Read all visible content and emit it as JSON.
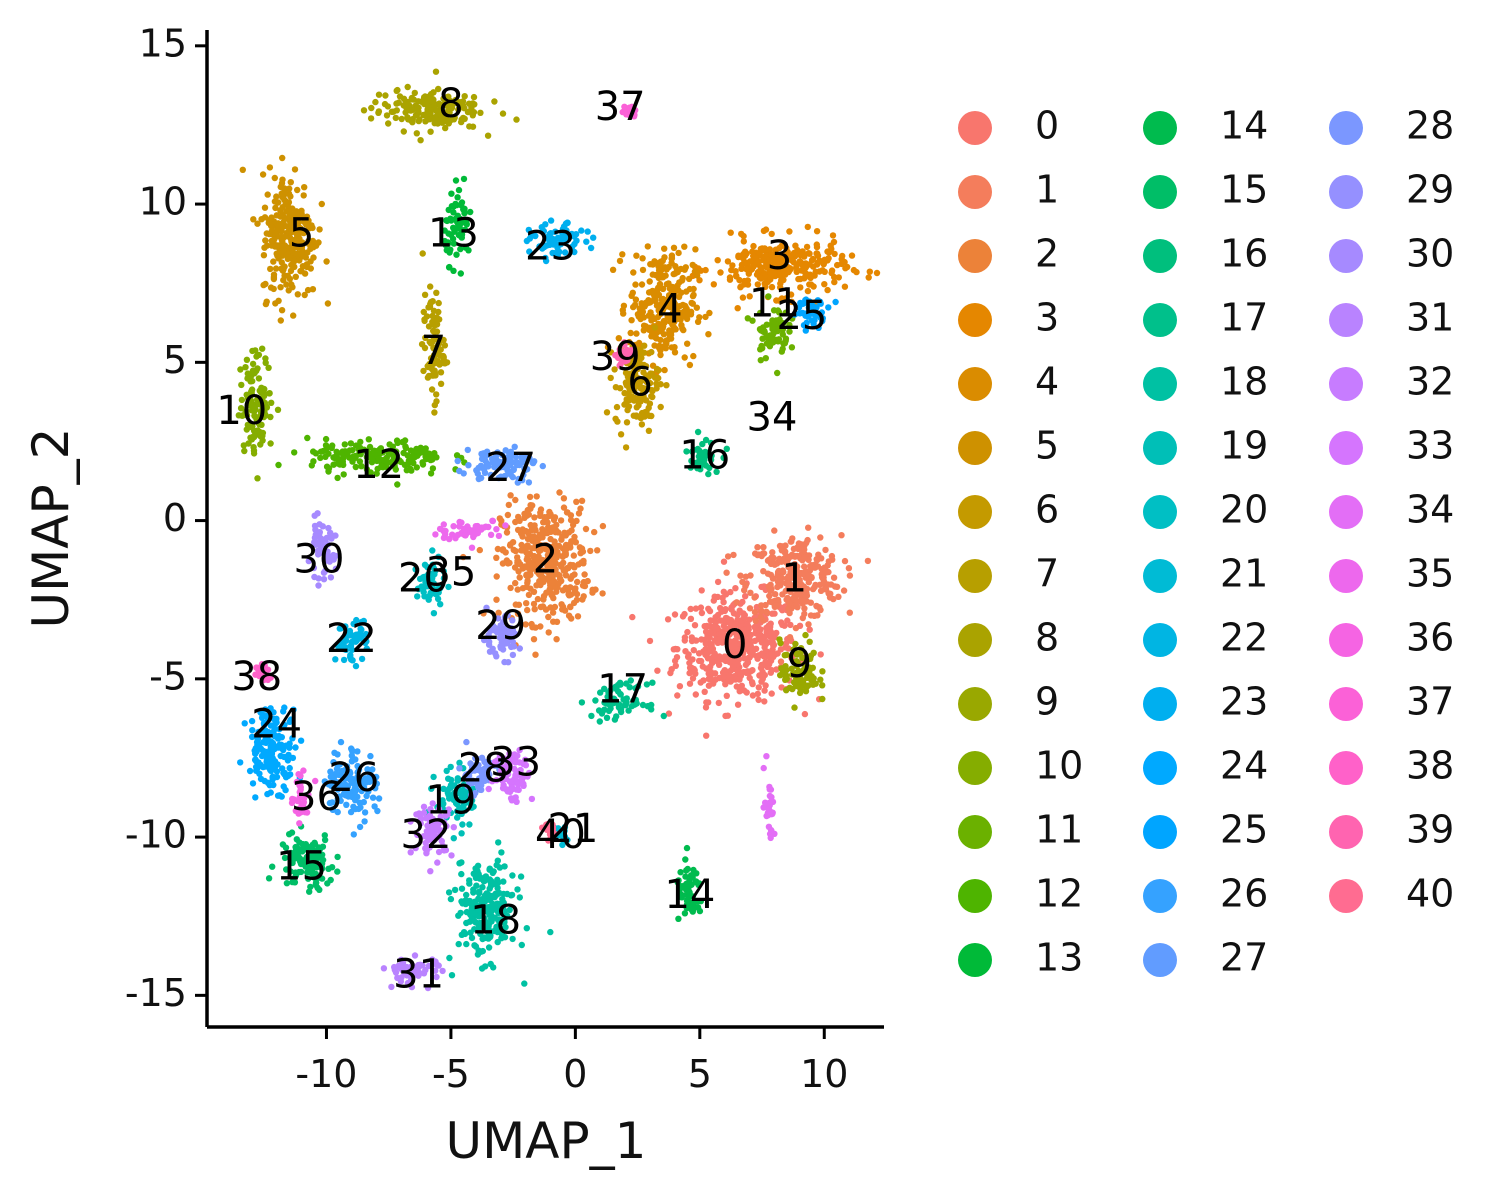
{
  "chart_data": {
    "type": "scatter",
    "title": "",
    "xlabel": "UMAP_1",
    "ylabel": "UMAP_2",
    "xlim": [
      -14.8,
      12.4
    ],
    "ylim": [
      -16.0,
      15.5
    ],
    "xticks": [
      -10,
      -5,
      0,
      5,
      10
    ],
    "yticks": [
      -15,
      -10,
      -5,
      0,
      5,
      10,
      15
    ],
    "xtick_labels": [
      "-10",
      "-5",
      "0",
      "5",
      "10"
    ],
    "ytick_labels": [
      "-15",
      "-10",
      "-5",
      "0",
      "5",
      "10",
      "15"
    ],
    "grid": false,
    "legend_position": "right",
    "legend_columns": 3,
    "clusters": [
      {
        "name": "0",
        "color": "#F8766D",
        "center": [
          6.5,
          -4.0
        ],
        "spread": [
          2.2,
          1.5
        ]
      },
      {
        "name": "1",
        "color": "#F47D5C",
        "center": [
          8.8,
          -1.8
        ],
        "spread": [
          1.7,
          1.2
        ]
      },
      {
        "name": "2",
        "color": "#EC8239",
        "center": [
          -1.2,
          -1.3
        ],
        "spread": [
          1.6,
          1.7
        ]
      },
      {
        "name": "3",
        "color": "#E58700",
        "center": [
          8.2,
          8.0
        ],
        "spread": [
          2.4,
          0.8
        ]
      },
      {
        "name": "4",
        "color": "#DA8C00",
        "center": [
          3.5,
          6.8
        ],
        "spread": [
          1.2,
          1.6
        ]
      },
      {
        "name": "5",
        "color": "#CE9100",
        "center": [
          -11.5,
          9.0
        ],
        "spread": [
          1.0,
          1.8
        ]
      },
      {
        "name": "6",
        "color": "#C49A00",
        "center": [
          2.5,
          4.3
        ],
        "spread": [
          0.8,
          1.2
        ]
      },
      {
        "name": "7",
        "color": "#B79F00",
        "center": [
          -5.7,
          5.5
        ],
        "spread": [
          0.4,
          1.5
        ]
      },
      {
        "name": "8",
        "color": "#AAA300",
        "center": [
          -6.0,
          13.0
        ],
        "spread": [
          2.0,
          0.6
        ]
      },
      {
        "name": "9",
        "color": "#99A800",
        "center": [
          9.0,
          -4.8
        ],
        "spread": [
          0.7,
          0.9
        ]
      },
      {
        "name": "10",
        "color": "#85AD00",
        "center": [
          -12.8,
          3.7
        ],
        "spread": [
          0.6,
          1.4
        ]
      },
      {
        "name": "11",
        "color": "#6BB100",
        "center": [
          7.9,
          6.0
        ],
        "spread": [
          0.6,
          0.8
        ]
      },
      {
        "name": "12",
        "color": "#4EB400",
        "center": [
          -8.0,
          2.0
        ],
        "spread": [
          2.5,
          0.5
        ]
      },
      {
        "name": "13",
        "color": "#00BA38",
        "center": [
          -4.7,
          9.3
        ],
        "spread": [
          0.5,
          1.0
        ]
      },
      {
        "name": "14",
        "color": "#00BB4E",
        "center": [
          4.6,
          -11.8
        ],
        "spread": [
          0.5,
          0.8
        ]
      },
      {
        "name": "15",
        "color": "#00BE67",
        "center": [
          -10.8,
          -10.8
        ],
        "spread": [
          1.0,
          0.8
        ]
      },
      {
        "name": "16",
        "color": "#00BF7D",
        "center": [
          5.1,
          2.1
        ],
        "spread": [
          0.6,
          0.5
        ]
      },
      {
        "name": "17",
        "color": "#00C08B",
        "center": [
          1.8,
          -5.7
        ],
        "spread": [
          1.0,
          0.5
        ]
      },
      {
        "name": "18",
        "color": "#00C1A3",
        "center": [
          -3.6,
          -12.3
        ],
        "spread": [
          1.1,
          1.4
        ]
      },
      {
        "name": "19",
        "color": "#00BFB7",
        "center": [
          -4.7,
          -8.8
        ],
        "spread": [
          0.8,
          0.8
        ]
      },
      {
        "name": "20",
        "color": "#00BFC4",
        "center": [
          -5.8,
          -2.0
        ],
        "spread": [
          0.5,
          0.7
        ]
      },
      {
        "name": "21",
        "color": "#00BBD5",
        "center": [
          -0.7,
          -9.9
        ],
        "spread": [
          0.3,
          0.3
        ]
      },
      {
        "name": "22",
        "color": "#00B5E3",
        "center": [
          -9.0,
          -3.8
        ],
        "spread": [
          0.6,
          0.6
        ]
      },
      {
        "name": "23",
        "color": "#00AFEF",
        "center": [
          -0.7,
          8.8
        ],
        "spread": [
          1.0,
          0.5
        ]
      },
      {
        "name": "24",
        "color": "#00A9FF",
        "center": [
          -12.2,
          -7.2
        ],
        "spread": [
          0.9,
          1.2
        ]
      },
      {
        "name": "25",
        "color": "#00A5FF",
        "center": [
          9.5,
          6.6
        ],
        "spread": [
          0.7,
          0.4
        ]
      },
      {
        "name": "26",
        "color": "#35A2FF",
        "center": [
          -9.0,
          -8.3
        ],
        "spread": [
          0.9,
          1.0
        ]
      },
      {
        "name": "27",
        "color": "#619CFF",
        "center": [
          -3.0,
          1.8
        ],
        "spread": [
          1.3,
          0.5
        ]
      },
      {
        "name": "28",
        "color": "#7B97FF",
        "center": [
          -3.9,
          -8.0
        ],
        "spread": [
          0.7,
          0.6
        ]
      },
      {
        "name": "29",
        "color": "#9590FF",
        "center": [
          -3.0,
          -3.7
        ],
        "spread": [
          0.7,
          0.6
        ]
      },
      {
        "name": "30",
        "color": "#A68AFF",
        "center": [
          -10.2,
          -1.0
        ],
        "spread": [
          0.5,
          0.8
        ]
      },
      {
        "name": "31",
        "color": "#B983FF",
        "center": [
          -6.5,
          -14.2
        ],
        "spread": [
          1.0,
          0.4
        ]
      },
      {
        "name": "32",
        "color": "#C77CFF",
        "center": [
          -5.7,
          -9.8
        ],
        "spread": [
          0.7,
          0.7
        ]
      },
      {
        "name": "33",
        "color": "#D575FE",
        "center": [
          -2.5,
          -8.0
        ],
        "spread": [
          0.7,
          0.8
        ]
      },
      {
        "name": "34",
        "color": "#E36EF6",
        "center": [
          7.8,
          -9.0
        ],
        "spread": [
          0.2,
          1.0
        ]
      },
      {
        "name": "35",
        "color": "#ED68ED",
        "center": [
          -4.2,
          -0.3
        ],
        "spread": [
          1.2,
          0.3
        ]
      },
      {
        "name": "36",
        "color": "#F564E3",
        "center": [
          -11.0,
          -8.8
        ],
        "spread": [
          0.4,
          0.6
        ]
      },
      {
        "name": "37",
        "color": "#FB61D7",
        "center": [
          2.2,
          12.9
        ],
        "spread": [
          0.2,
          0.2
        ]
      },
      {
        "name": "38",
        "color": "#FF61C9",
        "center": [
          -12.6,
          -4.8
        ],
        "spread": [
          0.3,
          0.3
        ]
      },
      {
        "name": "39",
        "color": "#FF64B0",
        "center": [
          2.0,
          5.2
        ],
        "spread": [
          0.3,
          0.3
        ]
      },
      {
        "name": "40",
        "color": "#FF6C91",
        "center": [
          -1.0,
          -9.8
        ],
        "spread": [
          0.2,
          0.2
        ]
      }
    ],
    "cluster_labels": [
      {
        "text": "0",
        "x": 6.4,
        "y": -4.0
      },
      {
        "text": "1",
        "x": 8.8,
        "y": -1.9
      },
      {
        "text": "2",
        "x": -1.2,
        "y": -1.3
      },
      {
        "text": "3",
        "x": 8.2,
        "y": 8.3
      },
      {
        "text": "4",
        "x": 3.8,
        "y": 6.6
      },
      {
        "text": "5",
        "x": -11.0,
        "y": 9.0
      },
      {
        "text": "6",
        "x": 2.6,
        "y": 4.3
      },
      {
        "text": "7",
        "x": -5.7,
        "y": 5.3
      },
      {
        "text": "8",
        "x": -5.0,
        "y": 13.1
      },
      {
        "text": "9",
        "x": 9.0,
        "y": -4.6
      },
      {
        "text": "10",
        "x": -13.4,
        "y": 3.4
      },
      {
        "text": "11",
        "x": 8.0,
        "y": 6.8
      },
      {
        "text": "12",
        "x": -7.9,
        "y": 1.7
      },
      {
        "text": "13",
        "x": -4.9,
        "y": 9.0
      },
      {
        "text": "14",
        "x": 4.6,
        "y": -11.9
      },
      {
        "text": "15",
        "x": -11.0,
        "y": -11.0
      },
      {
        "text": "16",
        "x": 5.2,
        "y": 2.0
      },
      {
        "text": "17",
        "x": 1.9,
        "y": -5.4
      },
      {
        "text": "18",
        "x": -3.2,
        "y": -12.7
      },
      {
        "text": "19",
        "x": -5.0,
        "y": -8.9
      },
      {
        "text": "20",
        "x": -6.1,
        "y": -1.9
      },
      {
        "text": "21",
        "x": -0.1,
        "y": -9.8
      },
      {
        "text": "22",
        "x": -9.0,
        "y": -3.8
      },
      {
        "text": "23",
        "x": -1.0,
        "y": 8.6
      },
      {
        "text": "24",
        "x": -12.0,
        "y": -6.5
      },
      {
        "text": "25",
        "x": 9.1,
        "y": 6.4
      },
      {
        "text": "26",
        "x": -8.9,
        "y": -8.2
      },
      {
        "text": "27",
        "x": -2.6,
        "y": 1.6
      },
      {
        "text": "28",
        "x": -3.7,
        "y": -7.9
      },
      {
        "text": "29",
        "x": -3.0,
        "y": -3.4
      },
      {
        "text": "30",
        "x": -10.3,
        "y": -1.3
      },
      {
        "text": "31",
        "x": -6.3,
        "y": -14.4
      },
      {
        "text": "32",
        "x": -6.0,
        "y": -10.0
      },
      {
        "text": "33",
        "x": -2.4,
        "y": -7.7
      },
      {
        "text": "34",
        "x": 7.9,
        "y": 3.2
      },
      {
        "text": "35",
        "x": -5.0,
        "y": -1.7
      },
      {
        "text": "36",
        "x": -10.4,
        "y": -8.8
      },
      {
        "text": "37",
        "x": 1.8,
        "y": 13.0
      },
      {
        "text": "38",
        "x": -12.8,
        "y": -5.0
      },
      {
        "text": "39",
        "x": 1.6,
        "y": 5.1
      },
      {
        "text": "40",
        "x": -0.6,
        "y": -10.0
      }
    ]
  }
}
